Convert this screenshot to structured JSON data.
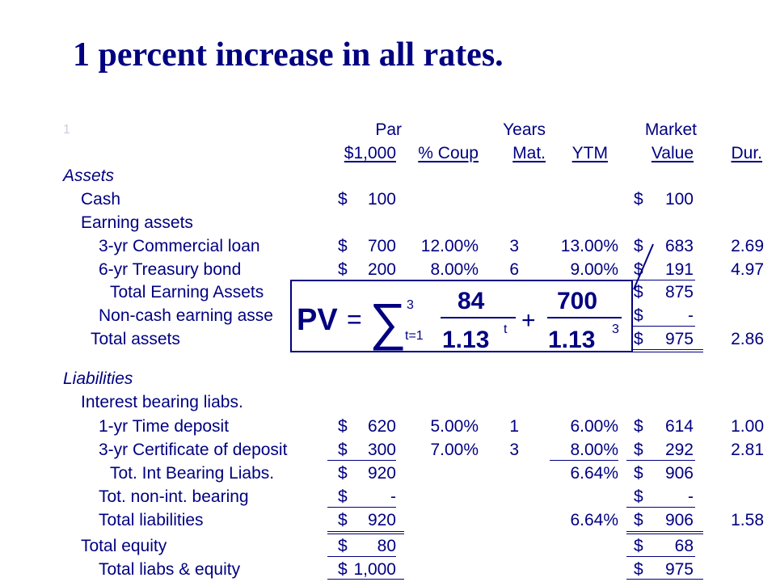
{
  "title": "1 percent increase in all rates.",
  "corner_mark": "1",
  "headers": {
    "par_top": "Par",
    "par_bottom": "$1,000",
    "coup": "% Coup",
    "years_top": "Years",
    "years_bottom": "Mat.",
    "ytm": "YTM",
    "market_top": "Market",
    "market_bottom": "Value",
    "dur": "Dur."
  },
  "rows": {
    "assets": {
      "label": "Assets"
    },
    "cash": {
      "label": "Cash",
      "par_sign": "$",
      "par": "100",
      "mv_sign": "$",
      "mv": "100"
    },
    "earning": {
      "label": "Earning assets"
    },
    "loan": {
      "label": "3-yr Commercial loan",
      "par_sign": "$",
      "par": "700",
      "coup": "12.00%",
      "mat": "3",
      "ytm": "13.00%",
      "mv_sign": "$",
      "mv": "683",
      "dur": "2.69"
    },
    "bond": {
      "label": "6-yr Treasury bond",
      "par_sign": "$",
      "par": "200",
      "coup": "8.00%",
      "mat": "6",
      "ytm": "9.00%",
      "mv_sign": "$",
      "mv": "191",
      "dur": "4.97"
    },
    "tea": {
      "label": "Total Earning Assets",
      "mv_sign": "$",
      "mv": "875"
    },
    "noncash": {
      "label": "Non-cash earning asse",
      "mv_sign": "$",
      "mv": "-"
    },
    "total_assets": {
      "label": "Total assets",
      "mv_sign": "$",
      "mv": "975",
      "dur": "2.86"
    },
    "liabilities": {
      "label": "Liabilities"
    },
    "ibl": {
      "label": "Interest bearing liabs."
    },
    "td": {
      "label": "1-yr Time deposit",
      "par_sign": "$",
      "par": "620",
      "coup": "5.00%",
      "mat": "1",
      "ytm": "6.00%",
      "mv_sign": "$",
      "mv": "614",
      "dur": "1.00"
    },
    "cd": {
      "label": "3-yr Certificate of deposit",
      "par_sign": "$",
      "par": "300",
      "coup": "7.00%",
      "mat": "3",
      "ytm": "8.00%",
      "mv_sign": "$",
      "mv": "292",
      "dur": "2.81"
    },
    "tibl": {
      "label": "Tot. Int Bearing Liabs.",
      "par_sign": "$",
      "par": "920",
      "ytm": "6.64%",
      "mv_sign": "$",
      "mv": "906"
    },
    "tnib": {
      "label": "Tot. non-int. bearing",
      "par_sign": "$",
      "par": "-",
      "mv_sign": "$",
      "mv": "-"
    },
    "tl": {
      "label": "Total liabilities",
      "par_sign": "$",
      "par": "920",
      "ytm": "6.64%",
      "mv_sign": "$",
      "mv": "906",
      "dur": "1.58"
    },
    "te": {
      "label": "Total equity",
      "par_sign": "$",
      "par": "80",
      "mv_sign": "$",
      "mv": "68"
    },
    "tle": {
      "label": "Total liabs & equity",
      "par_sign": "$",
      "par": "1,000",
      "mv_sign": "$",
      "mv": "975"
    }
  },
  "formula": {
    "pv": "PV",
    "eq": "=",
    "upper": "3",
    "lower": "t=1",
    "num1": "84",
    "den1": "1.13",
    "exp1": "t",
    "plus": "+",
    "num2": "700",
    "den2": "1.13",
    "exp2": "3"
  }
}
